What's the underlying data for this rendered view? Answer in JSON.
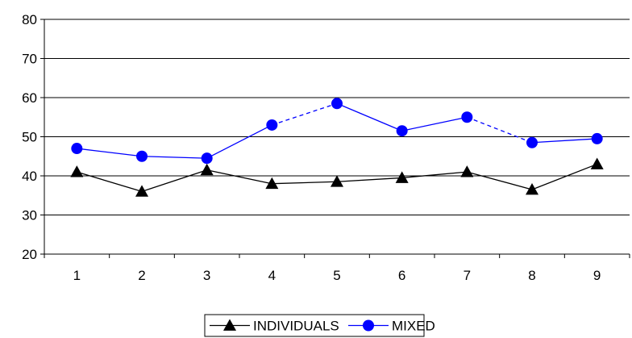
{
  "chart_data": {
    "type": "line",
    "x": [
      "1",
      "2",
      "3",
      "4",
      "5",
      "6",
      "7",
      "8",
      "9"
    ],
    "ylim": [
      20,
      80
    ],
    "yticks": [
      20,
      30,
      40,
      50,
      60,
      70,
      80
    ],
    "grid": true,
    "legend_position": "bottom",
    "series": [
      {
        "name": "INDIVIDUALS",
        "values": [
          41,
          36,
          41.5,
          38,
          38.5,
          39.5,
          41,
          36.5,
          43
        ],
        "color": "#000000",
        "marker": "triangle",
        "dashed_segments": []
      },
      {
        "name": "MIXED",
        "values": [
          47,
          45,
          44.5,
          53,
          58.5,
          51.5,
          55,
          48.5,
          49.5
        ],
        "color": "#0000ff",
        "marker": "circle",
        "dashed_segments": [
          [
            3,
            4
          ],
          [
            6,
            7
          ]
        ]
      }
    ]
  }
}
